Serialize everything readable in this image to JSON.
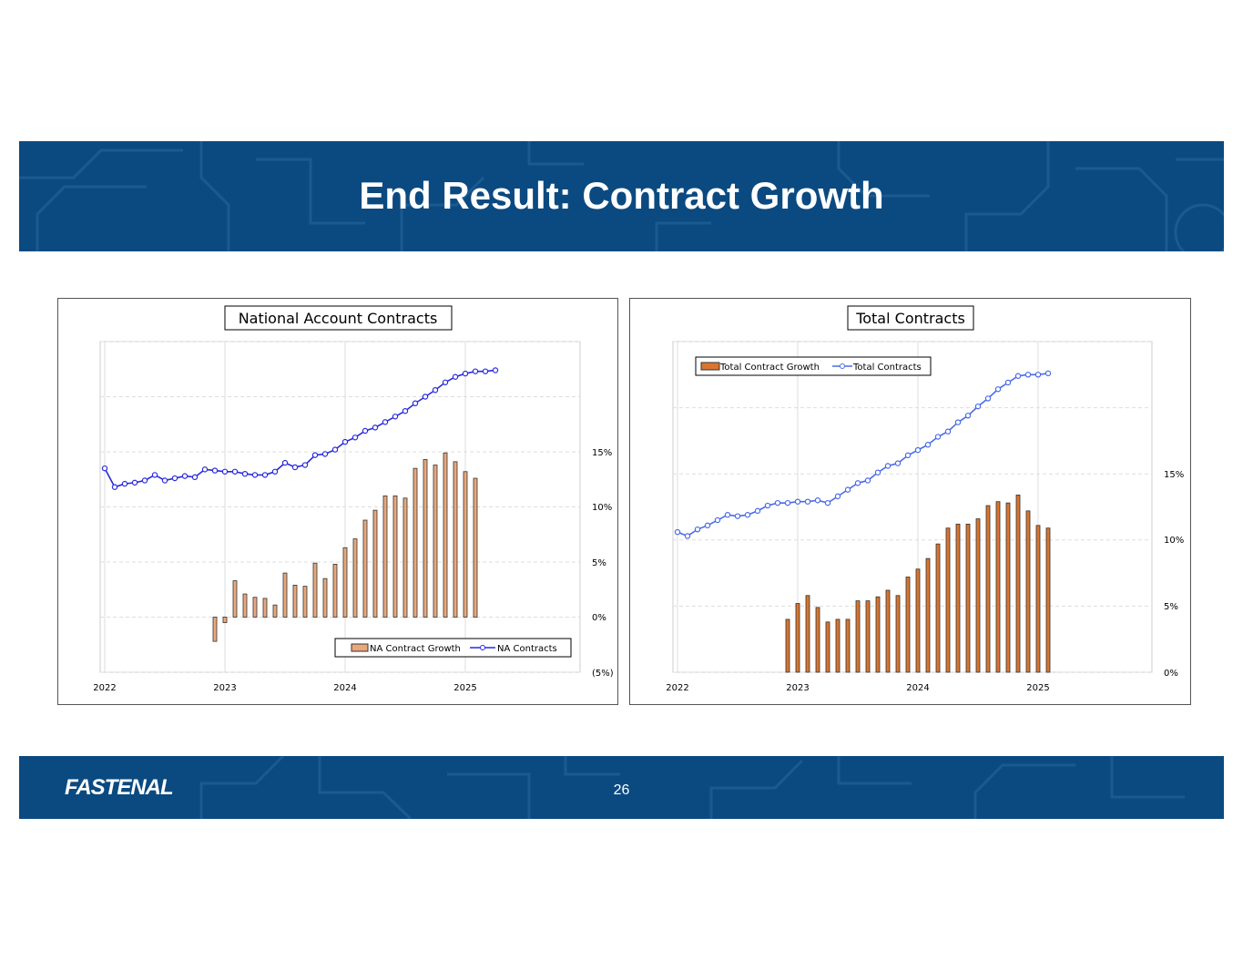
{
  "slide": {
    "title": "End Result: Contract Growth",
    "page_number": "26",
    "logo_text": "FASTENAL",
    "colors": {
      "banner": "#0b4a80",
      "bar_left": "#e8a87c",
      "bar_right": "#d9752e",
      "line": "#2a2ae0",
      "line_right": "#4a6ae8"
    }
  },
  "chart_data": [
    {
      "type": "bar+line",
      "title": "National Account Contracts",
      "x_tick_labels": [
        "2022",
        "2023",
        "2024",
        "2025"
      ],
      "y_tick_labels": [
        "15%",
        "10%",
        "5%",
        "0%",
        "(5%)"
      ],
      "ylim": [
        -5,
        25
      ],
      "legend": {
        "bar": "NA Contract Growth",
        "line": "NA Contracts",
        "position": "bottom-right"
      },
      "line_points_per_year": 12,
      "bar_series": {
        "name": "NA Contract Growth",
        "start_index": 11,
        "values": [
          -2.2,
          -0.5,
          3.3,
          2.1,
          1.8,
          1.7,
          1.1,
          4.0,
          2.9,
          2.8,
          4.9,
          3.5,
          4.8,
          6.3,
          7.1,
          8.8,
          9.7,
          11.0,
          11.0,
          10.8,
          13.5,
          14.3,
          13.8,
          14.9,
          14.1,
          13.2,
          12.6
        ]
      },
      "line_series": {
        "name": "NA Contracts",
        "start_index": 0,
        "values": [
          13.5,
          11.8,
          12.1,
          12.2,
          12.4,
          12.9,
          12.4,
          12.6,
          12.8,
          12.7,
          13.4,
          13.3,
          13.2,
          13.2,
          13.0,
          12.9,
          12.9,
          13.2,
          14.0,
          13.6,
          13.8,
          14.7,
          14.8,
          15.2,
          15.9,
          16.3,
          16.9,
          17.2,
          17.7,
          18.2,
          18.7,
          19.4,
          20.0,
          20.6,
          21.3,
          21.8,
          22.1,
          22.3,
          22.3,
          22.4
        ]
      }
    },
    {
      "type": "bar+line",
      "title": "Total Contracts",
      "x_tick_labels": [
        "2022",
        "2023",
        "2024",
        "2025"
      ],
      "y_tick_labels": [
        "15%",
        "10%",
        "5%",
        "0%"
      ],
      "ylim": [
        0,
        25
      ],
      "legend": {
        "bar": "Total Contract Growth",
        "line": "Total Contracts",
        "position": "top-left"
      },
      "line_points_per_year": 12,
      "bar_series": {
        "name": "Total Contract Growth",
        "start_index": 11,
        "values": [
          4.0,
          5.2,
          5.8,
          4.9,
          3.8,
          4.0,
          4.0,
          5.4,
          5.4,
          5.7,
          6.2,
          5.8,
          7.2,
          7.8,
          8.6,
          9.7,
          10.9,
          11.2,
          11.2,
          11.6,
          12.6,
          12.9,
          12.8,
          13.4,
          12.2,
          11.1,
          10.9
        ]
      },
      "line_series": {
        "name": "Total Contracts",
        "start_index": 0,
        "values": [
          10.6,
          10.3,
          10.8,
          11.1,
          11.5,
          11.9,
          11.8,
          11.9,
          12.2,
          12.6,
          12.8,
          12.8,
          12.9,
          12.9,
          13.0,
          12.8,
          13.3,
          13.8,
          14.3,
          14.5,
          15.1,
          15.6,
          15.8,
          16.4,
          16.8,
          17.2,
          17.8,
          18.2,
          18.9,
          19.4,
          20.1,
          20.7,
          21.4,
          21.9,
          22.4,
          22.5,
          22.5,
          22.6
        ]
      }
    }
  ]
}
